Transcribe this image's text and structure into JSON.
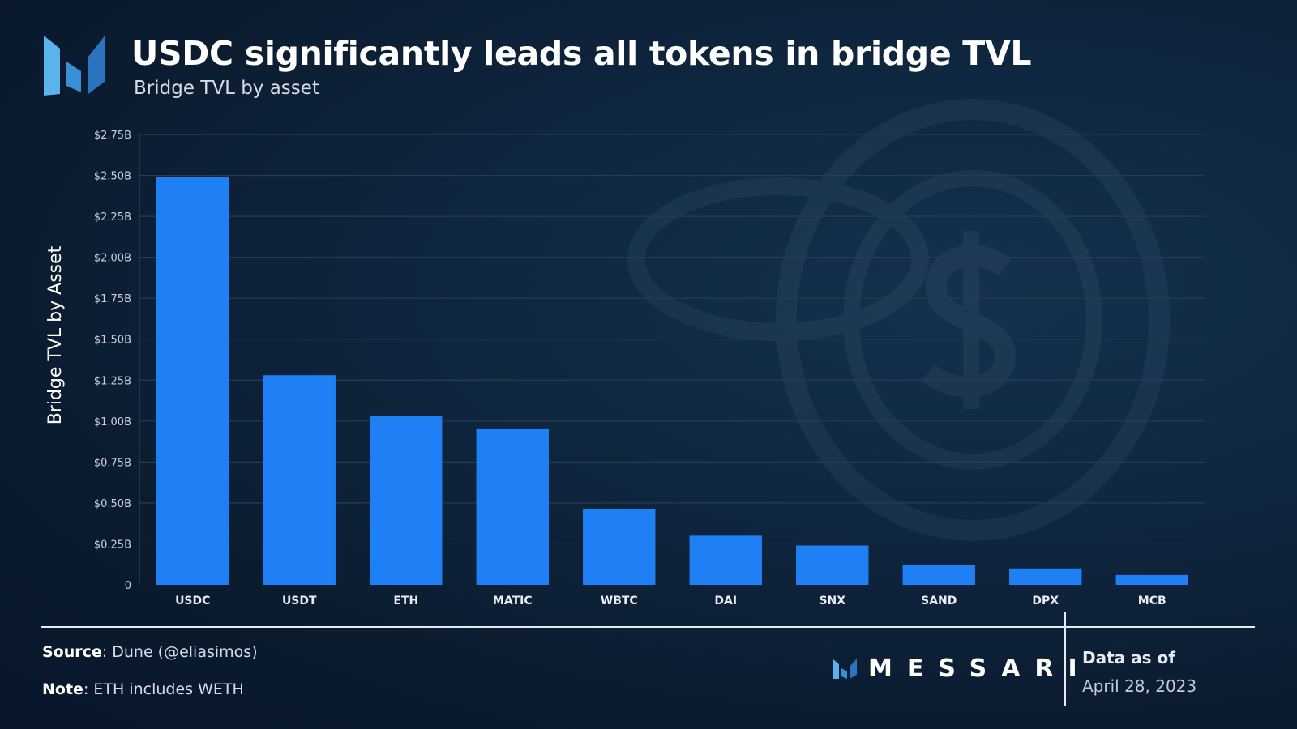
{
  "header": {
    "title": "USDC significantly leads all tokens in bridge TVL",
    "subtitle": "Bridge TVL by asset"
  },
  "chart_data": {
    "type": "bar",
    "title": "USDC significantly leads all tokens in bridge TVL",
    "subtitle": "Bridge TVL by asset",
    "xlabel": "",
    "ylabel": "Bridge TVL by Asset",
    "unit": "USD billions",
    "ylim": [
      0,
      2.75
    ],
    "yticks": [
      0,
      0.25,
      0.5,
      0.75,
      1.0,
      1.25,
      1.5,
      1.75,
      2.0,
      2.25,
      2.5,
      2.75
    ],
    "ytick_labels": [
      "0",
      "$0.25B",
      "$0.50B",
      "$0.75B",
      "$1.00B",
      "$1.25B",
      "$1.50B",
      "$1.75B",
      "$2.00B",
      "$2.25B",
      "$2.50B",
      "$2.75B"
    ],
    "grid": true,
    "categories": [
      "USDC",
      "USDT",
      "ETH",
      "MATIC",
      "WBTC",
      "DAI",
      "SNX",
      "SAND",
      "DPX",
      "MCB"
    ],
    "values": [
      2.49,
      1.28,
      1.03,
      0.95,
      0.46,
      0.3,
      0.24,
      0.12,
      0.1,
      0.06
    ],
    "bar_color": "#1f80f5"
  },
  "footer": {
    "source_label": "Source",
    "source_text": ": Dune (@eliasimos)",
    "note_label": "Note",
    "note_text": ": ETH includes WETH",
    "brand_name": "MESSARI",
    "data_as_of_label": "Data as of",
    "data_as_of_date": "April 28, 2023"
  },
  "colors": {
    "accent": "#1f80f5",
    "background": "#0d2237",
    "gridline": "#2a3b4d",
    "text": "#ffffff"
  }
}
